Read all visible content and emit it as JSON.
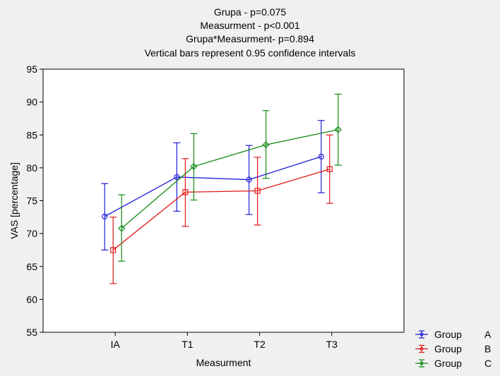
{
  "chart_data": {
    "type": "line",
    "title_lines": [
      "Grupa - p=0.075",
      "Measurment - p<0.001",
      "Grupa*Measurment- p=0.894"
    ],
    "subtitle": "Vertical bars represent 0.95 confidence intervals",
    "xlabel": "Measurment",
    "ylabel": "VAS [percentage]",
    "categories": [
      "IA",
      "T1",
      "T2",
      "T3"
    ],
    "ylim": [
      55,
      95
    ],
    "yticks": [
      55,
      60,
      65,
      70,
      75,
      80,
      85,
      90,
      95
    ],
    "grid": false,
    "legend_position": "bottom-right",
    "series": [
      {
        "name": "Group",
        "label": "A",
        "color": "#1f1fd8",
        "marker": "circle",
        "values": [
          72.6,
          78.6,
          78.2,
          81.7
        ],
        "ci_low": [
          67.5,
          73.4,
          72.9,
          76.2
        ],
        "ci_high": [
          77.6,
          83.8,
          83.4,
          87.2
        ]
      },
      {
        "name": "Group",
        "label": "B",
        "color": "#e01818",
        "marker": "square",
        "values": [
          67.5,
          76.3,
          76.5,
          79.8
        ],
        "ci_low": [
          62.4,
          71.1,
          71.3,
          74.6
        ],
        "ci_high": [
          72.5,
          81.4,
          81.6,
          85.0
        ]
      },
      {
        "name": "Group",
        "label": "C",
        "color": "#138a13",
        "marker": "diamond",
        "values": [
          70.8,
          80.2,
          83.5,
          85.8
        ],
        "ci_low": [
          65.8,
          75.1,
          78.4,
          80.4
        ],
        "ci_high": [
          75.9,
          85.2,
          88.7,
          91.2
        ]
      }
    ]
  }
}
